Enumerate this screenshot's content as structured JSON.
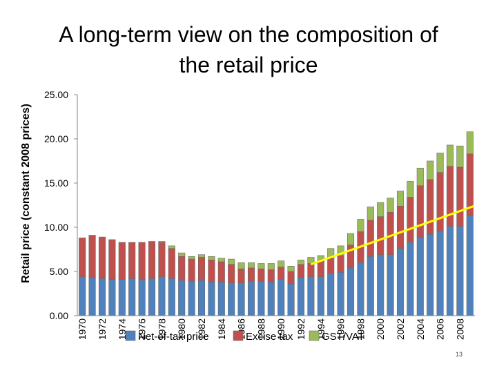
{
  "page": {
    "number": "13"
  },
  "chart_data": {
    "type": "bar",
    "stacked": true,
    "title": "A long-term view on the composition of the retail price",
    "title_lines": [
      "A long-term view on the composition of",
      "the retail price"
    ],
    "xlabel": "",
    "ylabel": "Retail price (constant 2008 prices)",
    "ylim": [
      0,
      25
    ],
    "y_ticks": [
      "0.00",
      "5.00",
      "10.00",
      "15.00",
      "20.00",
      "25.00"
    ],
    "categories": [
      "1970",
      "1971",
      "1972",
      "1973",
      "1974",
      "1975",
      "1976",
      "1977",
      "1978",
      "1979",
      "1980",
      "1981",
      "1982",
      "1983",
      "1984",
      "1985",
      "1986",
      "1987",
      "1988",
      "1989",
      "1990",
      "1991",
      "1992",
      "1993",
      "1994",
      "1995",
      "1996",
      "1997",
      "1998",
      "1999",
      "2000",
      "2001",
      "2002",
      "2003",
      "2004",
      "2005",
      "2006",
      "2007",
      "2008",
      "2009"
    ],
    "tick_labels_shown": [
      "1970",
      "1972",
      "1974",
      "1976",
      "1978",
      "1980",
      "1982",
      "1984",
      "1986",
      "1988",
      "1990",
      "1992",
      "1994",
      "1996",
      "1998",
      "2000",
      "2002",
      "2004",
      "2006",
      "2008"
    ],
    "series": [
      {
        "name": "Net-of-tax price",
        "color": "#4f81bd",
        "values": [
          4.4,
          4.3,
          4.2,
          4.1,
          4.1,
          4.2,
          4.1,
          4.2,
          4.4,
          4.2,
          4.0,
          3.9,
          4.0,
          3.8,
          3.8,
          3.7,
          3.7,
          3.9,
          3.9,
          3.8,
          4.1,
          3.6,
          4.3,
          4.4,
          4.4,
          4.8,
          4.9,
          5.4,
          6.0,
          6.7,
          6.9,
          6.9,
          7.6,
          8.3,
          8.9,
          9.2,
          9.6,
          10.1,
          10.1,
          11.3
        ]
      },
      {
        "name": "Excise tax",
        "color": "#c0504d",
        "values": [
          4.4,
          4.8,
          4.7,
          4.5,
          4.2,
          4.1,
          4.2,
          4.2,
          3.9,
          3.4,
          2.7,
          2.5,
          2.6,
          2.5,
          2.3,
          2.1,
          1.6,
          1.5,
          1.4,
          1.4,
          1.4,
          1.4,
          1.5,
          1.5,
          1.8,
          1.7,
          1.9,
          2.6,
          3.5,
          4.1,
          4.3,
          4.8,
          4.8,
          5.1,
          5.8,
          6.2,
          6.6,
          6.8,
          6.7,
          7.0
        ]
      },
      {
        "name": "GST/VAT",
        "color": "#9bbb59",
        "values": [
          0,
          0,
          0,
          0,
          0,
          0,
          0,
          0,
          0.1,
          0.3,
          0.4,
          0.3,
          0.3,
          0.4,
          0.4,
          0.6,
          0.7,
          0.6,
          0.6,
          0.7,
          0.7,
          0.6,
          0.5,
          0.7,
          0.6,
          1.1,
          1.1,
          1.3,
          1.4,
          1.5,
          1.6,
          1.6,
          1.7,
          1.8,
          2.0,
          2.1,
          2.2,
          2.4,
          2.4,
          2.5
        ]
      }
    ],
    "trend_line": {
      "color": "#ffff00",
      "from": {
        "x_index": 23,
        "y": 5.8
      },
      "to": {
        "x_index": 39,
        "y": 12.4
      }
    },
    "legend": {
      "position": "bottom-overlap"
    },
    "grid": false
  }
}
